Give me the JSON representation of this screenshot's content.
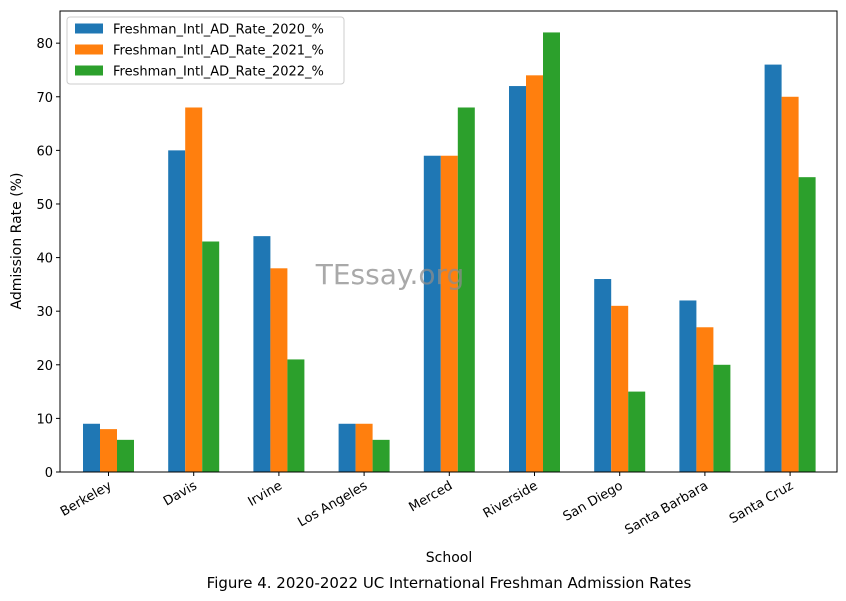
{
  "chart_data": {
    "type": "bar",
    "categories": [
      "Berkeley",
      "Davis",
      "Irvine",
      "Los Angeles",
      "Merced",
      "Riverside",
      "San Diego",
      "Santa Barbara",
      "Santa Cruz"
    ],
    "series": [
      {
        "name": "Freshman_Intl_AD_Rate_2020_%",
        "color": "#1f77b4",
        "values": [
          9,
          60,
          44,
          9,
          59,
          72,
          36,
          32,
          76
        ]
      },
      {
        "name": "Freshman_Intl_AD_Rate_2021_%",
        "color": "#ff7f0e",
        "values": [
          8,
          68,
          38,
          9,
          59,
          74,
          31,
          27,
          70
        ]
      },
      {
        "name": "Freshman_Intl_AD_Rate_2022_%",
        "color": "#2ca02c",
        "values": [
          6,
          43,
          21,
          6,
          68,
          82,
          15,
          20,
          55
        ]
      }
    ],
    "xlabel": "School",
    "ylabel": "Admission Rate (%)",
    "ylim": [
      0,
      86
    ],
    "yticks": [
      "0",
      "10",
      "20",
      "30",
      "40",
      "50",
      "60",
      "70",
      "80"
    ],
    "legend_position": "top-left",
    "grid": false
  },
  "caption": "Figure 4. 2020-2022 UC International Freshman Admission Rates",
  "watermark": "TEssay.org"
}
